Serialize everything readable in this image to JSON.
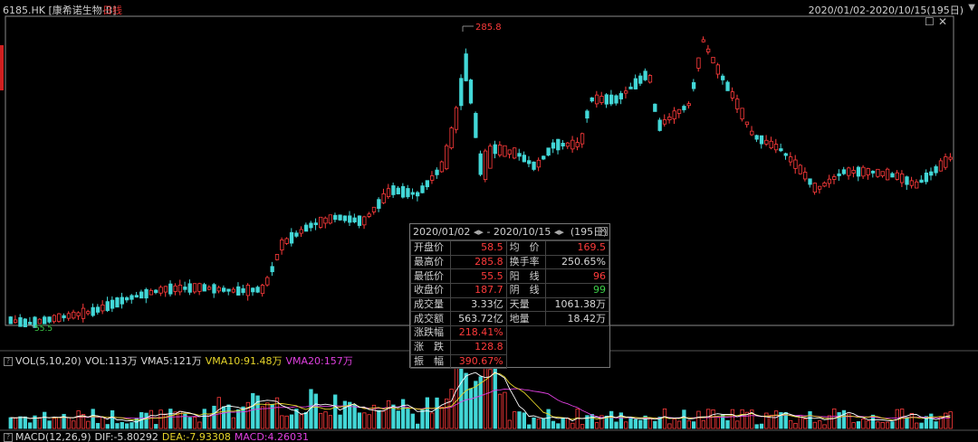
{
  "header": {
    "stock": "6185.HK [康希诺生物-B]",
    "period": "日线",
    "range": "2020/01/02-2020/10/15(195日)",
    "dropdown_icon": "triangle-down-icon"
  },
  "price_chart": {
    "high_label": "285.8",
    "low_label": "55.5"
  },
  "volume_panel": {
    "name": "VOL(5,10,20)",
    "vol": "VOL:113万",
    "vma5": "VMA5:121万",
    "vma10": "VMA10:91.48万",
    "vma20": "VMA20:157万"
  },
  "macd_panel": {
    "name": "MACD(12,26,9)",
    "dif": "DIF:-5.80292",
    "dea": "DEA:-7.93308",
    "macd": "MACD:4.26031"
  },
  "stats": {
    "start": "2020/01/02",
    "end": "2020/10/15",
    "days": "(195日)",
    "rows": [
      {
        "l1": "开盘价",
        "v1": "58.5",
        "c1": "red",
        "l2": "均　价",
        "v2": "169.5",
        "c2": "red"
      },
      {
        "l1": "最高价",
        "v1": "285.8",
        "c1": "red",
        "l2": "换手率",
        "v2": "250.65%",
        "c2": "wht"
      },
      {
        "l1": "最低价",
        "v1": "55.5",
        "c1": "red",
        "l2": "阳　线",
        "v2": "96",
        "c2": "red"
      },
      {
        "l1": "收盘价",
        "v1": "187.7",
        "c1": "red",
        "l2": "阴　线",
        "v2": "99",
        "c2": "grn"
      },
      {
        "l1": "成交量",
        "v1": "3.33亿",
        "c1": "wht",
        "l2": "天量",
        "v2": "1061.38万",
        "c2": "wht"
      },
      {
        "l1": "成交额",
        "v1": "563.72亿",
        "c1": "wht",
        "l2": "地量",
        "v2": "18.42万",
        "c2": "wht"
      }
    ],
    "extra": [
      {
        "l": "涨跌幅",
        "v": "218.41%"
      },
      {
        "l": "涨　跌",
        "v": "128.8"
      },
      {
        "l": "振　幅",
        "v": "390.67%"
      }
    ]
  },
  "colors": {
    "up": "#ff3b3b",
    "down": "#42d7d7",
    "vma5": "#ffffff",
    "vma10": "#e6d52a",
    "vma20": "#e040e0"
  }
}
